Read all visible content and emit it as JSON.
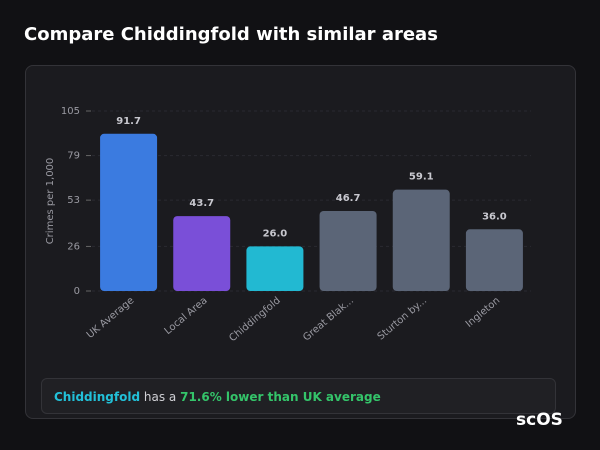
{
  "page_title": "Compare Chiddingfold with similar areas",
  "chart_data": {
    "type": "bar",
    "y_label": "Crimes per 1,000",
    "categories": [
      "UK Average",
      "Local Area",
      "Chiddingfold",
      "Great Blak...",
      "Sturton by...",
      "Ingleton"
    ],
    "values": [
      91.7,
      43.7,
      26.0,
      46.7,
      59.1,
      36.0
    ],
    "value_labels": [
      "91.7",
      "43.7",
      "26.0",
      "46.7",
      "59.1",
      "36.0"
    ],
    "colors": [
      "#3b7be0",
      "#7a4fd8",
      "#22b9d2",
      "#5b6577",
      "#5b6577",
      "#5b6577"
    ],
    "ylim": [
      0,
      105
    ],
    "yticks": [
      0,
      26,
      53,
      79,
      105
    ],
    "grid": true
  },
  "summary": {
    "area": "Chiddingfold",
    "text": "has a",
    "highlight": "71.6% lower than UK average"
  },
  "logo": "scOS"
}
